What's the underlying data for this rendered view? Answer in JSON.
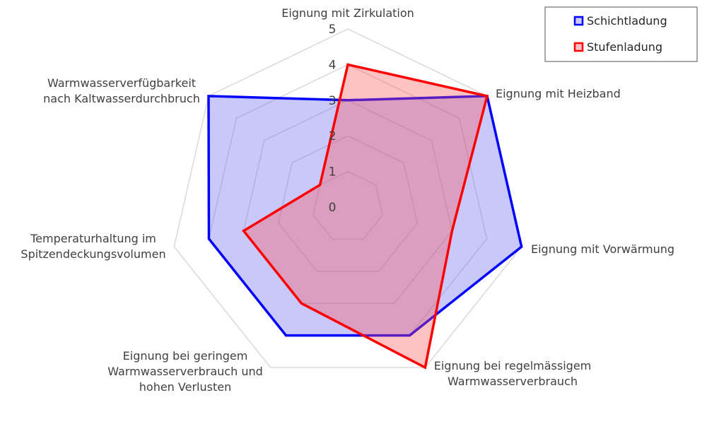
{
  "chart_data": {
    "type": "radar",
    "categories": [
      "Eignung mit Zirkulation",
      "Eignung mit Heizband",
      "Eignung mit Vorwärmung",
      "Eignung bei regelmässigem Warmwasserverbrauch",
      "Eignung bei geringem Warmwasserverbrauch und hohen Verlusten",
      "Temperaturhaltung im Spitzendeckungsvolumen",
      "Warmwasserverfügbarkeit nach Kaltwasserdurchbruch"
    ],
    "category_lines": [
      [
        "Eignung mit Zirkulation"
      ],
      [
        "Eignung mit Heizband"
      ],
      [
        "Eignung mit Vorwärmung"
      ],
      [
        "Eignung bei regelmässigem",
        "Warmwasserverbrauch"
      ],
      [
        "Eignung bei geringem",
        "Warmwasserverbrauch und",
        "hohen Verlusten"
      ],
      [
        "Temperaturhaltung im",
        "Spitzendeckungsvolumen"
      ],
      [
        "Warmwasserverfügbarkeit",
        "nach Kaltwasserdurchbruch"
      ]
    ],
    "ticks": [
      "0",
      "1",
      "2",
      "3",
      "4",
      "5"
    ],
    "rlim": [
      0,
      5
    ],
    "series": [
      {
        "name": "Schichtladung",
        "values": [
          3,
          5,
          5,
          4,
          4,
          4,
          5
        ],
        "color": "#0000ff",
        "fill": "rgba(110,110,245,0.38)"
      },
      {
        "name": "Stufenladung",
        "values": [
          4,
          5,
          3,
          5,
          3,
          3,
          1
        ],
        "color": "#ff0000",
        "fill": "rgba(255,80,80,0.35)"
      }
    ],
    "legend": {
      "position": "top-right"
    },
    "grid": true
  }
}
